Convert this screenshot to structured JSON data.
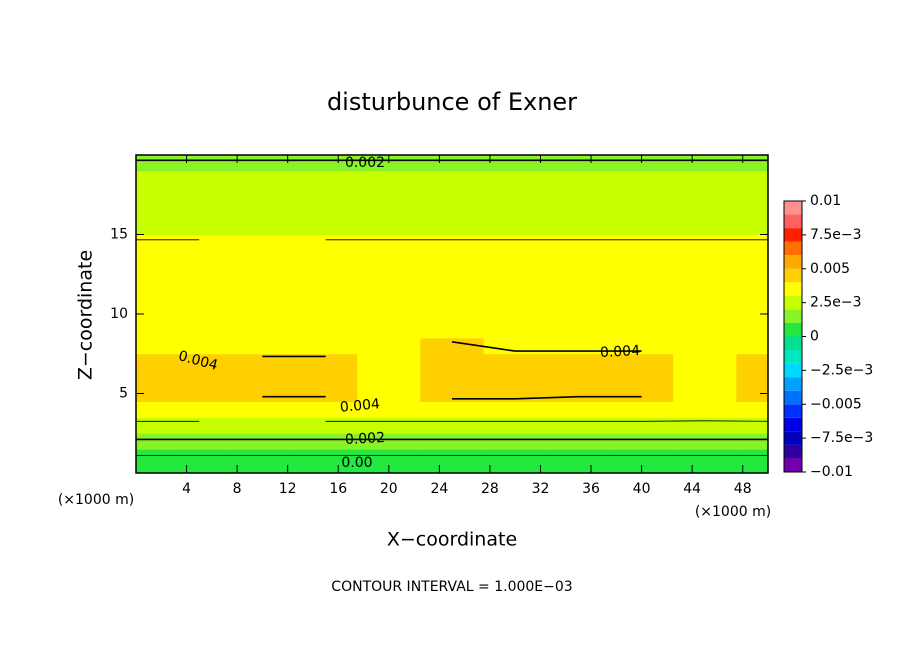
{
  "chart_data": {
    "type": "contour",
    "title": "disturbunce of Exner",
    "x_label": "X−coordinate",
    "y_label": "Z−coordinate",
    "unit_labels": [
      "(×1000 m)",
      "(×1000 m)"
    ],
    "footer": "CONTOUR INTERVAL = 1.000E−03",
    "xlim": [
      0,
      50
    ],
    "ylim": [
      0,
      20
    ],
    "xticks": [
      4,
      8,
      12,
      16,
      20,
      24,
      28,
      32,
      36,
      40,
      44,
      48
    ],
    "yticks": [
      5,
      10,
      15
    ],
    "x": [
      0,
      5,
      10,
      15,
      20,
      25,
      30,
      35,
      40,
      45,
      50
    ],
    "y": [
      0,
      1,
      2,
      3,
      4,
      5,
      6,
      7,
      8,
      9,
      10,
      12,
      14,
      16,
      18,
      20
    ],
    "z": [
      [
        0.0002,
        0.0002,
        0.0002,
        0.0002,
        0.0002,
        0.0002,
        0.0002,
        0.0002,
        0.0002,
        0.0002,
        0.0002
      ],
      [
        0.0009,
        0.0009,
        0.0009,
        0.0009,
        0.0009,
        0.0009,
        0.0009,
        0.0009,
        0.0009,
        0.0009,
        0.0009
      ],
      [
        0.0019,
        0.0019,
        0.0019,
        0.0019,
        0.0019,
        0.0019,
        0.0019,
        0.0019,
        0.0019,
        0.0019,
        0.0019
      ],
      [
        0.0028,
        0.0028,
        0.0028,
        0.0028,
        0.0028,
        0.0028,
        0.0028,
        0.0028,
        0.0028,
        0.0028,
        0.0028
      ],
      [
        0.0036,
        0.0036,
        0.0036,
        0.0036,
        0.0036,
        0.0036,
        0.0036,
        0.0036,
        0.0036,
        0.0035,
        0.0036
      ],
      [
        0.0041,
        0.0041,
        0.0041,
        0.0041,
        0.0039,
        0.0042,
        0.0042,
        0.0041,
        0.0041,
        0.0038,
        0.0041
      ],
      [
        0.0042,
        0.0042,
        0.0042,
        0.0042,
        0.0038,
        0.0043,
        0.0042,
        0.0042,
        0.0042,
        0.0038,
        0.0042
      ],
      [
        0.0041,
        0.004,
        0.0041,
        0.0041,
        0.0039,
        0.0043,
        0.0042,
        0.0042,
        0.0042,
        0.0038,
        0.0042
      ],
      [
        0.0039,
        0.0038,
        0.0038,
        0.0038,
        0.0038,
        0.0041,
        0.0039,
        0.0039,
        0.0039,
        0.0038,
        0.0039
      ],
      [
        0.0037,
        0.0037,
        0.0037,
        0.0037,
        0.0037,
        0.0037,
        0.0037,
        0.0037,
        0.0037,
        0.0037,
        0.0037
      ],
      [
        0.0035,
        0.0035,
        0.0035,
        0.0035,
        0.0035,
        0.0035,
        0.0035,
        0.0035,
        0.0035,
        0.0035,
        0.0035
      ],
      [
        0.0033,
        0.0033,
        0.0033,
        0.0033,
        0.0033,
        0.0033,
        0.0033,
        0.0033,
        0.0033,
        0.0033,
        0.0033
      ],
      [
        0.0031,
        0.0031,
        0.003,
        0.0031,
        0.0031,
        0.0031,
        0.0031,
        0.0031,
        0.0031,
        0.0031,
        0.0031
      ],
      [
        0.0028,
        0.0028,
        0.0028,
        0.0028,
        0.0028,
        0.0028,
        0.0028,
        0.0028,
        0.0028,
        0.0028,
        0.0028
      ],
      [
        0.0025,
        0.0025,
        0.0025,
        0.0025,
        0.0025,
        0.0025,
        0.0025,
        0.0025,
        0.0025,
        0.0025,
        0.0025
      ],
      [
        0.0019,
        0.0019,
        0.0019,
        0.0019,
        0.0019,
        0.0019,
        0.0019,
        0.0019,
        0.0019,
        0.0019,
        0.0019
      ]
    ],
    "levels": [
      -0.01,
      -0.009,
      -0.008,
      -0.007,
      -0.006,
      -0.005,
      -0.004,
      -0.003,
      -0.002,
      -0.001,
      0,
      0.001,
      0.002,
      0.003,
      0.004,
      0.005,
      0.006,
      0.007,
      0.008,
      0.009,
      0.01
    ],
    "colors": [
      "#7000b0",
      "#3000a0",
      "#0000c0",
      "#0000e8",
      "#0030ff",
      "#0070ff",
      "#00a0ff",
      "#00d8ff",
      "#00e8c0",
      "#00e090",
      "#22e840",
      "#88f428",
      "#c8ff00",
      "#ffff00",
      "#ffd000",
      "#ffa800",
      "#ff7000",
      "#ff2000",
      "#ff6060",
      "#ff9090"
    ],
    "colorbar_ticks": [
      {
        "value": -0.01,
        "label": "−0.01"
      },
      {
        "value": -0.0075,
        "label": "−7.5e−3"
      },
      {
        "value": -0.005,
        "label": "−0.005"
      },
      {
        "value": -0.0025,
        "label": "−2.5e−3"
      },
      0,
      {
        "value": 0.0025,
        "label": "2.5e−3"
      },
      0.005,
      {
        "value": 0.0075,
        "label": "7.5e−3"
      },
      0.01
    ],
    "contour_labels": [
      "0.002",
      "0.004",
      "0.004",
      "0.004",
      "0.002",
      "0.00"
    ]
  }
}
